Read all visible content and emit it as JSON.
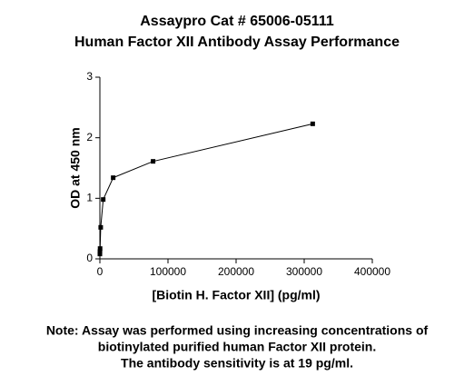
{
  "chart_data": {
    "type": "line",
    "title": [
      "Assaypro Cat # 65006-05111",
      "Human Factor XII Antibody Assay Performance"
    ],
    "x_label": "[Biotin H. Factor XII] (pg/ml)",
    "y_label": "OD at 450 nm",
    "x": [
      19,
      76,
      305,
      1221,
      4883,
      19531,
      78125,
      312500
    ],
    "series": [
      {
        "name": "OD",
        "color": "#000000",
        "values": [
          0.08,
          0.12,
          0.17,
          0.52,
          0.98,
          1.34,
          1.61,
          2.23
        ]
      }
    ],
    "xlim": [
      0,
      400000
    ],
    "xticks": [
      0,
      100000,
      200000,
      300000,
      400000
    ],
    "ylim": [
      0,
      3
    ],
    "yticks": [
      0,
      1,
      2,
      3
    ],
    "note": [
      "Note: Assay was performed using increasing concentrations of",
      "biotinylated purified human Factor XII protein.",
      "The antibody sensitivity is at 19 pg/ml."
    ]
  }
}
